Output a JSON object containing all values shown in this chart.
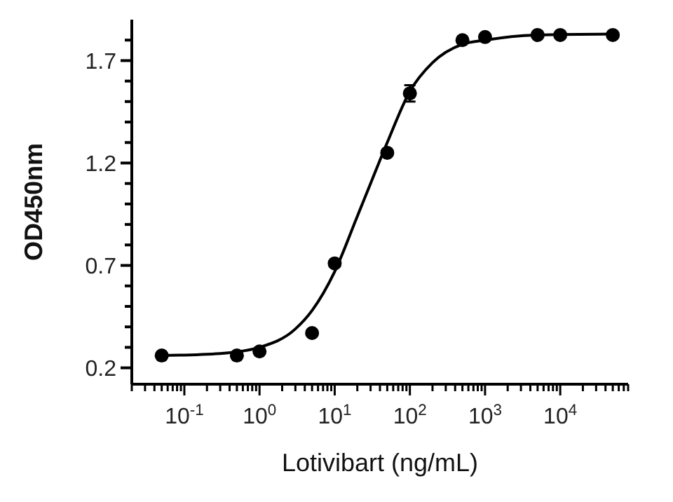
{
  "chart_data": {
    "type": "scatter",
    "xlabel": "Lotivibart (ng/mL)",
    "ylabel": "OD450nm",
    "log": "x",
    "xlim": [
      0.02,
      80000
    ],
    "ylim": [
      0.12,
      1.9
    ],
    "xticks": [
      {
        "value": 0.02,
        "label": null
      },
      {
        "value": 0.03,
        "label": null
      },
      {
        "value": 0.04,
        "label": null
      },
      {
        "value": 0.05,
        "label": null
      },
      {
        "value": 0.06,
        "label": null
      },
      {
        "value": 0.07,
        "label": null
      },
      {
        "value": 0.08,
        "label": null
      },
      {
        "value": 0.09,
        "label": null
      },
      {
        "value": 0.1,
        "label": "10$^{-1}$"
      },
      {
        "value": 0.2,
        "label": null
      },
      {
        "value": 0.3,
        "label": null
      },
      {
        "value": 0.4,
        "label": null
      },
      {
        "value": 0.5,
        "label": null
      },
      {
        "value": 0.6,
        "label": null
      },
      {
        "value": 0.7,
        "label": null
      },
      {
        "value": 0.8,
        "label": null
      },
      {
        "value": 0.9,
        "label": null
      },
      {
        "value": 1,
        "label": "10$^{0}$"
      },
      {
        "value": 2,
        "label": null
      },
      {
        "value": 3,
        "label": null
      },
      {
        "value": 4,
        "label": null
      },
      {
        "value": 5,
        "label": null
      },
      {
        "value": 6,
        "label": null
      },
      {
        "value": 7,
        "label": null
      },
      {
        "value": 8,
        "label": null
      },
      {
        "value": 9,
        "label": null
      },
      {
        "value": 10,
        "label": "10$^{1}$"
      },
      {
        "value": 20,
        "label": null
      },
      {
        "value": 30,
        "label": null
      },
      {
        "value": 40,
        "label": null
      },
      {
        "value": 50,
        "label": null
      },
      {
        "value": 60,
        "label": null
      },
      {
        "value": 70,
        "label": null
      },
      {
        "value": 80,
        "label": null
      },
      {
        "value": 90,
        "label": null
      },
      {
        "value": 100,
        "label": "10$^{2}$"
      },
      {
        "value": 200,
        "label": null
      },
      {
        "value": 300,
        "label": null
      },
      {
        "value": 400,
        "label": null
      },
      {
        "value": 500,
        "label": null
      },
      {
        "value": 600,
        "label": null
      },
      {
        "value": 700,
        "label": null
      },
      {
        "value": 800,
        "label": null
      },
      {
        "value": 900,
        "label": null
      },
      {
        "value": 1000,
        "label": "10$^{3}$"
      },
      {
        "value": 2000,
        "label": null
      },
      {
        "value": 3000,
        "label": null
      },
      {
        "value": 4000,
        "label": null
      },
      {
        "value": 5000,
        "label": null
      },
      {
        "value": 6000,
        "label": null
      },
      {
        "value": 7000,
        "label": null
      },
      {
        "value": 8000,
        "label": null
      },
      {
        "value": 9000,
        "label": null
      },
      {
        "value": 10000,
        "label": "10$^{4}$"
      },
      {
        "value": 20000,
        "label": null
      },
      {
        "value": 30000,
        "label": null
      },
      {
        "value": 40000,
        "label": null
      },
      {
        "value": 50000,
        "label": null
      },
      {
        "value": 60000,
        "label": null
      },
      {
        "value": 70000,
        "label": null
      },
      {
        "value": 80000,
        "label": null
      }
    ],
    "yticks": [
      0.2,
      {
        "value": 0.3,
        "label": null
      },
      {
        "value": 0.4,
        "label": null
      },
      {
        "value": 0.5,
        "label": null
      },
      {
        "value": 0.6,
        "label": null
      },
      0.7,
      {
        "value": 0.8,
        "label": null
      },
      {
        "value": 0.9,
        "label": null
      },
      {
        "value": 1.0,
        "label": null
      },
      {
        "value": 1.1,
        "label": null
      },
      1.2,
      {
        "value": 1.3,
        "label": null
      },
      {
        "value": 1.4,
        "label": null
      },
      {
        "value": 1.5,
        "label": null
      },
      {
        "value": 1.6,
        "label": null
      },
      1.7,
      {
        "value": 1.8,
        "label": null
      }
    ],
    "grid": false,
    "marker": "circle",
    "series": [
      {
        "color": "#000000",
        "x": [
          0.05,
          0.5,
          1,
          5,
          10,
          50,
          100,
          500,
          1000,
          5000,
          10000,
          50000
        ],
        "values": [
          0.26,
          0.26,
          0.28,
          0.37,
          0.71,
          1.25,
          1.54,
          1.8,
          1.815,
          1.825,
          1.825,
          1.825
        ],
        "errors": [
          null,
          null,
          null,
          null,
          null,
          null,
          0.04,
          null,
          null,
          null,
          null,
          null
        ]
      },
      {
        "type": "line",
        "color": "#000000",
        "marker": "none",
        "line_style": "solid",
        "x": [
          0.05,
          0.3,
          1,
          3,
          5,
          10,
          20,
          30,
          50,
          100,
          200,
          500,
          1000,
          5000,
          50000
        ],
        "values": [
          0.26,
          0.27,
          0.3,
          0.39,
          0.48,
          0.67,
          0.94,
          1.1,
          1.3,
          1.55,
          1.69,
          1.78,
          1.8,
          1.825,
          1.83
        ]
      }
    ]
  }
}
